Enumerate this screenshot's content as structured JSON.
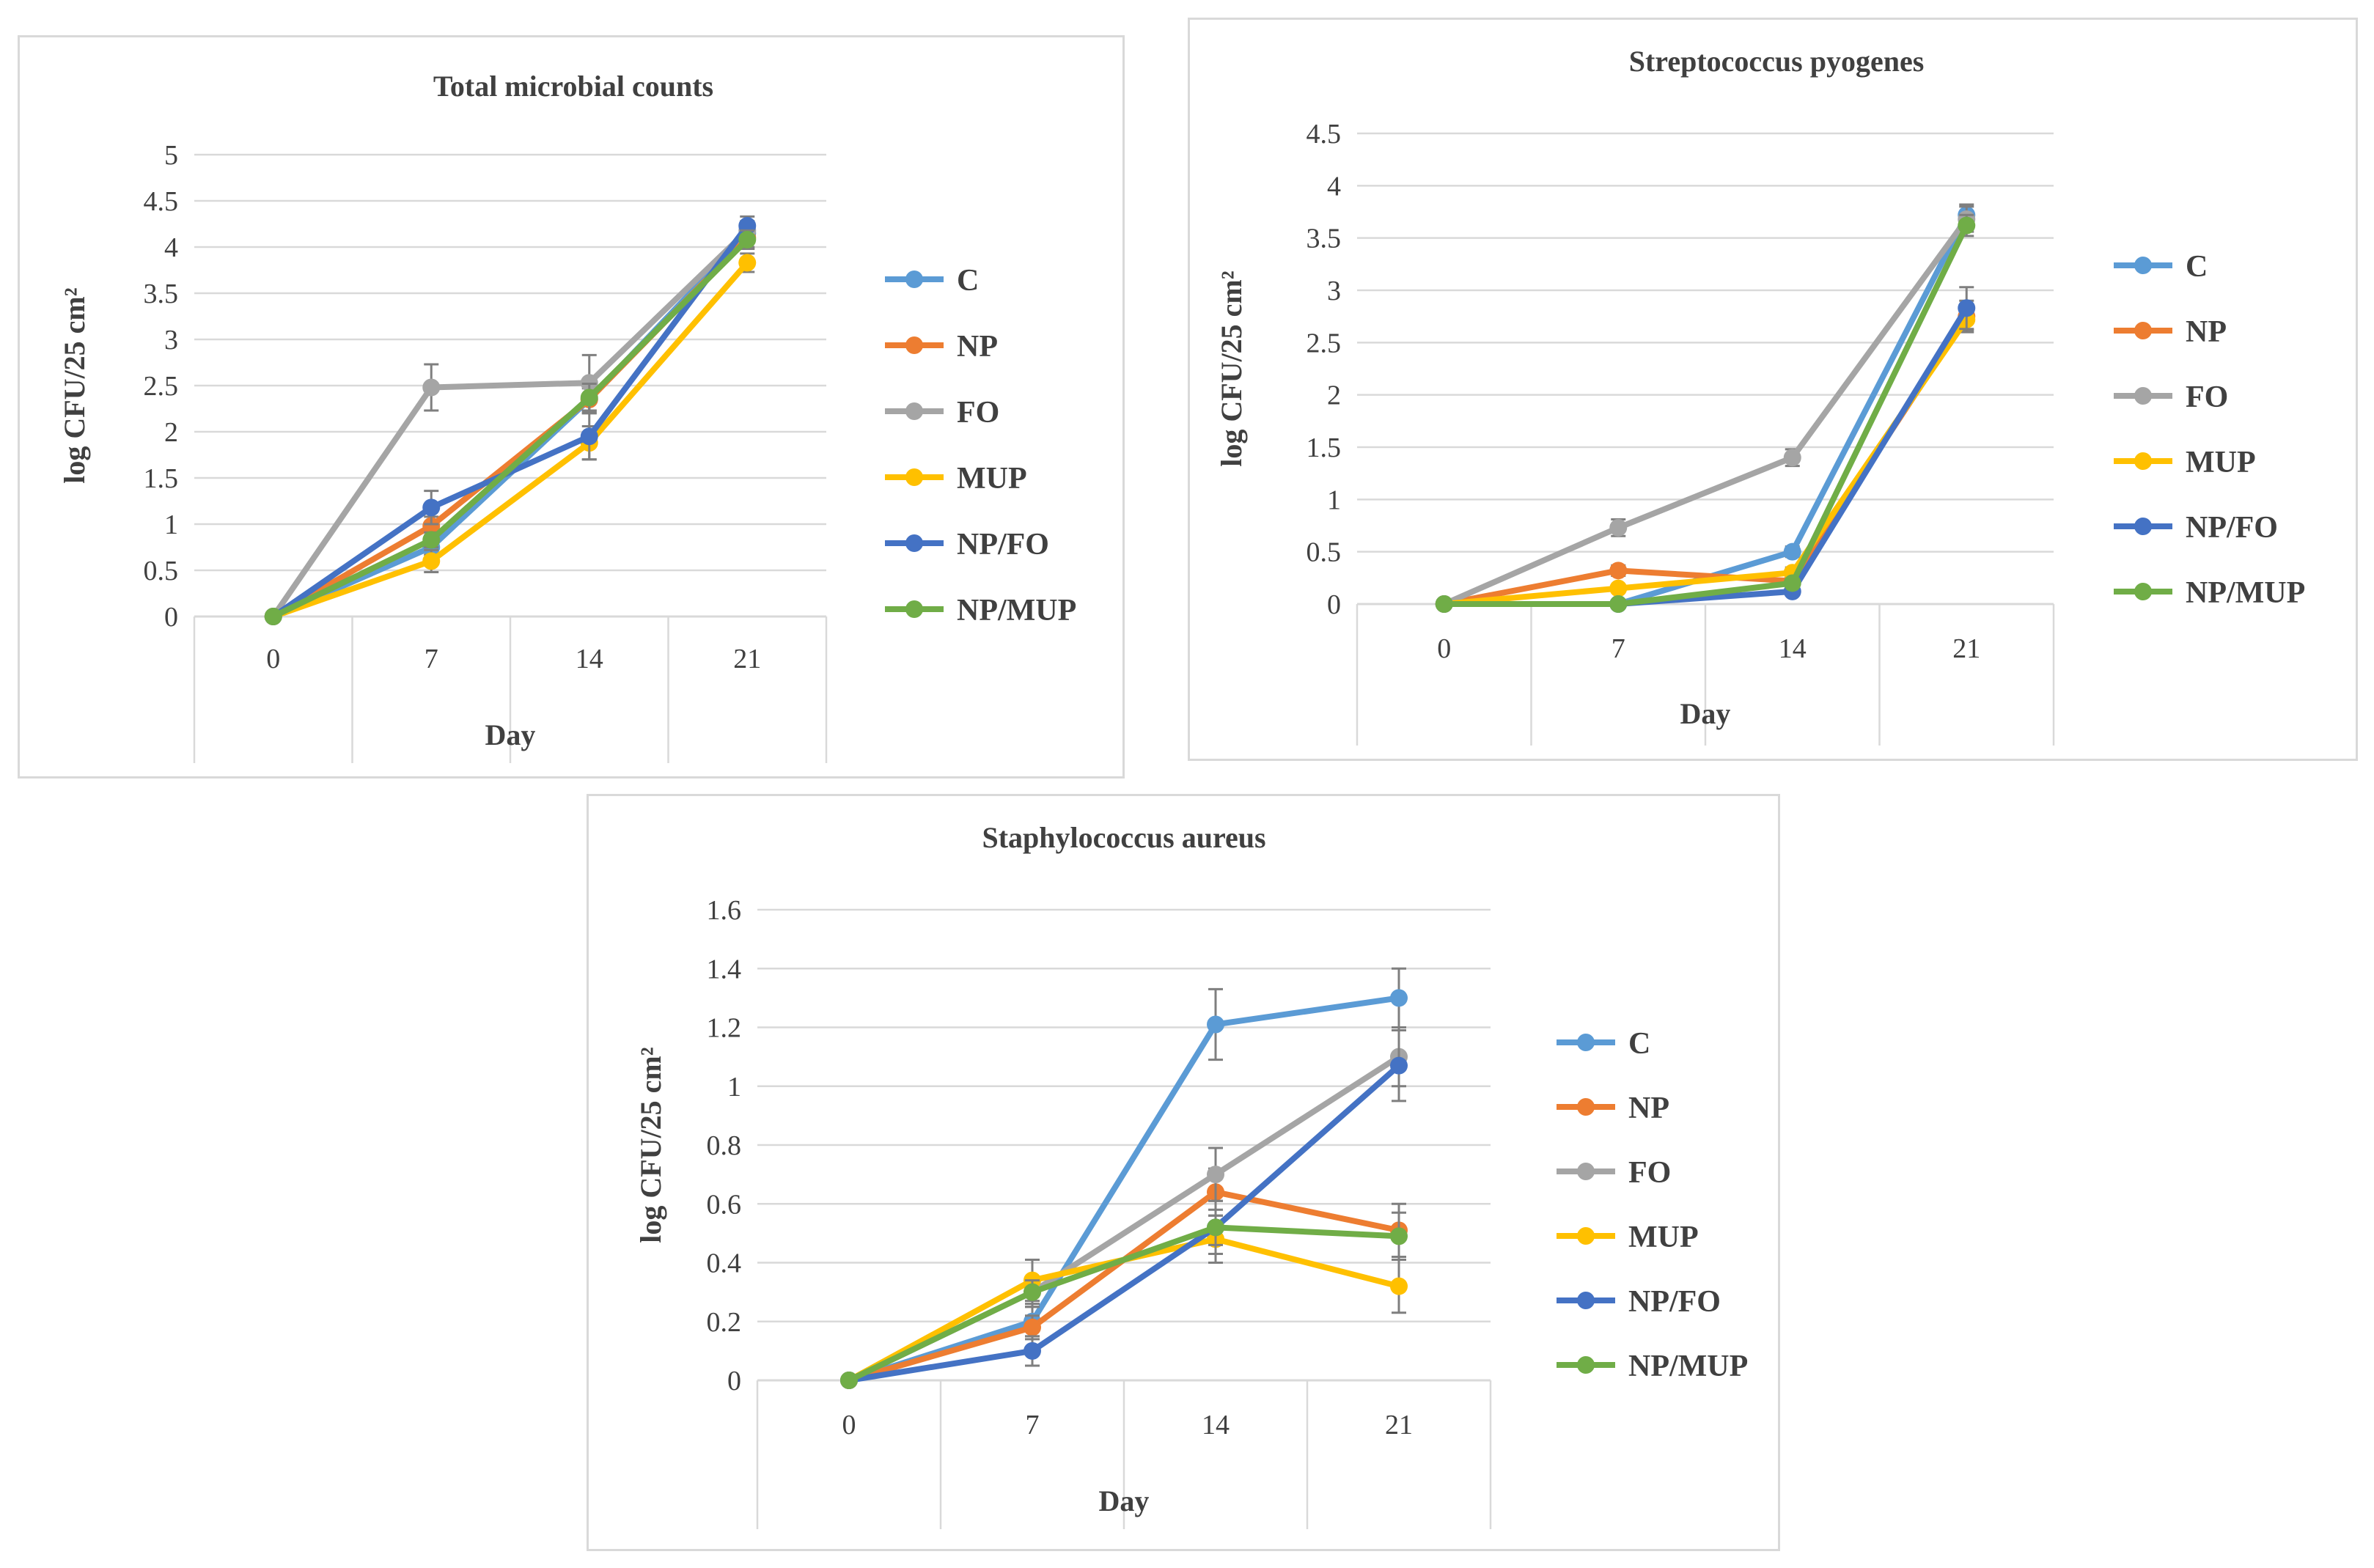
{
  "chart_data": [
    {
      "type": "line",
      "title": "Total microbial counts",
      "xlabel": "Day",
      "ylabel": "log CFU/25 cm²",
      "categories": [
        "0",
        "7",
        "14",
        "21"
      ],
      "ylim": [
        0,
        5
      ],
      "yticks": [
        "0",
        "0.5",
        "1",
        "1.5",
        "2",
        "2.5",
        "3",
        "3.5",
        "4",
        "4.5",
        "5"
      ],
      "grid": true,
      "legend": "right",
      "series": [
        {
          "name": "C",
          "color": "#5b9bd5",
          "values": [
            0,
            0.75,
            2.35,
            4.15
          ],
          "errors": [
            0,
            0.08,
            0.12,
            0.08
          ]
        },
        {
          "name": "NP",
          "color": "#ed7d31",
          "values": [
            0,
            0.98,
            2.35,
            4.1
          ],
          "errors": [
            0,
            0.1,
            0.15,
            0.1
          ]
        },
        {
          "name": "FO",
          "color": "#a5a5a5",
          "values": [
            0,
            2.48,
            2.53,
            4.18
          ],
          "errors": [
            0,
            0.25,
            0.3,
            0.1
          ]
        },
        {
          "name": "MUP",
          "color": "#ffc000",
          "values": [
            0,
            0.6,
            1.88,
            3.83
          ],
          "errors": [
            0,
            0.12,
            0.18,
            0.1
          ]
        },
        {
          "name": "NP/FO",
          "color": "#4472c4",
          "values": [
            0,
            1.18,
            1.95,
            4.23
          ],
          "errors": [
            0,
            0.18,
            0.25,
            0.1
          ]
        },
        {
          "name": "NP/MUP",
          "color": "#70ad47",
          "values": [
            0,
            0.83,
            2.37,
            4.08
          ],
          "errors": [
            0,
            0.08,
            0.15,
            0.1
          ]
        }
      ]
    },
    {
      "type": "line",
      "title": "Streptococcus pyogenes",
      "xlabel": "Day",
      "ylabel": "log CFU/25 cm²",
      "categories": [
        "0",
        "7",
        "14",
        "21"
      ],
      "ylim": [
        0,
        4.5
      ],
      "yticks": [
        "0",
        "0.5",
        "1",
        "1.5",
        "2",
        "2.5",
        "3",
        "3.5",
        "4",
        "4.5"
      ],
      "grid": true,
      "legend": "right",
      "series": [
        {
          "name": "C",
          "color": "#5b9bd5",
          "values": [
            0,
            0,
            0.5,
            3.72
          ],
          "errors": [
            0,
            0,
            0.05,
            0.1
          ]
        },
        {
          "name": "NP",
          "color": "#ed7d31",
          "values": [
            0,
            0.32,
            0.22,
            2.75
          ],
          "errors": [
            0,
            0.05,
            0.05,
            0.15
          ]
        },
        {
          "name": "FO",
          "color": "#a5a5a5",
          "values": [
            0,
            0.73,
            1.4,
            3.68
          ],
          "errors": [
            0,
            0.08,
            0.08,
            0.12
          ]
        },
        {
          "name": "MUP",
          "color": "#ffc000",
          "values": [
            0,
            0.15,
            0.3,
            2.72
          ],
          "errors": [
            0,
            0.03,
            0.05,
            0.1
          ]
        },
        {
          "name": "NP/FO",
          "color": "#4472c4",
          "values": [
            0,
            0,
            0.12,
            2.83
          ],
          "errors": [
            0,
            0,
            0.03,
            0.2
          ]
        },
        {
          "name": "NP/MUP",
          "color": "#70ad47",
          "values": [
            0,
            0,
            0.2,
            3.62
          ],
          "errors": [
            0,
            0,
            0.03,
            0.1
          ]
        }
      ]
    },
    {
      "type": "line",
      "title": "Staphylococcus aureus",
      "xlabel": "Day",
      "ylabel": "log CFU/25 cm²",
      "categories": [
        "0",
        "7",
        "14",
        "21"
      ],
      "ylim": [
        0,
        1.6
      ],
      "yticks": [
        "0",
        "0.2",
        "0.4",
        "0.6",
        "0.8",
        "1",
        "1.2",
        "1.4",
        "1.6"
      ],
      "grid": true,
      "legend": "right",
      "series": [
        {
          "name": "C",
          "color": "#5b9bd5",
          "values": [
            0,
            0.2,
            1.21,
            1.3
          ],
          "errors": [
            0,
            0.05,
            0.12,
            0.1
          ]
        },
        {
          "name": "NP",
          "color": "#ed7d31",
          "values": [
            0,
            0.18,
            0.64,
            0.51
          ],
          "errors": [
            0,
            0.04,
            0.08,
            0.09
          ]
        },
        {
          "name": "FO",
          "color": "#a5a5a5",
          "values": [
            0,
            0.3,
            0.7,
            1.1
          ],
          "errors": [
            0,
            0.05,
            0.09,
            0.1
          ]
        },
        {
          "name": "MUP",
          "color": "#ffc000",
          "values": [
            0,
            0.34,
            0.48,
            0.32
          ],
          "errors": [
            0,
            0.07,
            0.08,
            0.09
          ]
        },
        {
          "name": "NP/FO",
          "color": "#4472c4",
          "values": [
            0,
            0.1,
            0.52,
            1.07
          ],
          "errors": [
            0,
            0.05,
            0.09,
            0.12
          ]
        },
        {
          "name": "NP/MUP",
          "color": "#70ad47",
          "values": [
            0,
            0.3,
            0.52,
            0.49
          ],
          "errors": [
            0,
            0.04,
            0.06,
            0.08
          ]
        }
      ]
    }
  ]
}
